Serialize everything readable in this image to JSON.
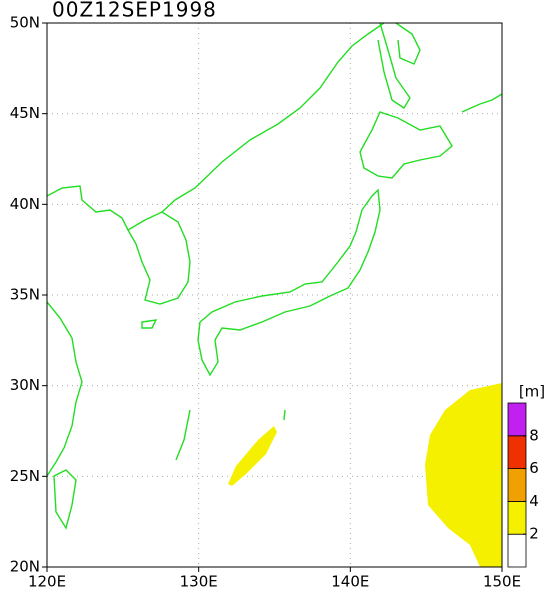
{
  "map": {
    "title": "00Z12SEP1998",
    "lon_range": [
      120,
      150
    ],
    "lat_range": [
      20,
      50
    ],
    "lon_ticks": [
      {
        "value": 120,
        "label": "120E"
      },
      {
        "value": 130,
        "label": "130E"
      },
      {
        "value": 140,
        "label": "140E"
      },
      {
        "value": 150,
        "label": "150E"
      }
    ],
    "lat_ticks": [
      {
        "value": 20,
        "label": "20N"
      },
      {
        "value": 25,
        "label": "25N"
      },
      {
        "value": 30,
        "label": "30N"
      },
      {
        "value": 35,
        "label": "35N"
      },
      {
        "value": 40,
        "label": "40N"
      },
      {
        "value": 45,
        "label": "45N"
      },
      {
        "value": 50,
        "label": "50N"
      }
    ],
    "grid": true
  },
  "colorbar": {
    "unit": "[m]",
    "range": [
      0,
      10
    ],
    "levels": [
      0,
      2,
      4,
      6,
      8,
      10
    ],
    "colors": [
      "#ffffff",
      "#f5f000",
      "#f0a000",
      "#f03000",
      "#c020f0"
    ],
    "ticks": [
      2,
      4,
      6,
      8
    ]
  }
}
